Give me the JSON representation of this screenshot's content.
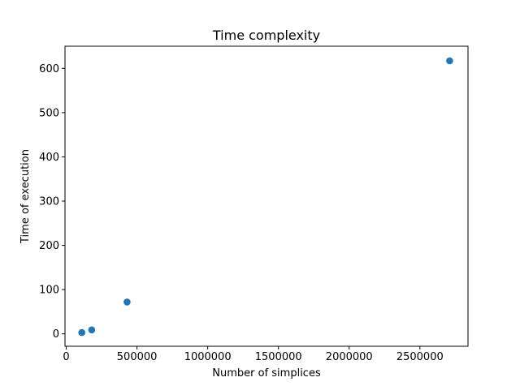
{
  "chart_data": {
    "type": "scatter",
    "title": "Time complexity",
    "xlabel": "Number of simplices",
    "ylabel": "Time of execution",
    "xlim": [
      -9000,
      2840000
    ],
    "ylim": [
      -28,
      650
    ],
    "xticks": [
      0,
      500000,
      1000000,
      1500000,
      2000000,
      2500000
    ],
    "xtick_labels": [
      "0",
      "500000",
      "1000000",
      "1500000",
      "2000000",
      "2500000"
    ],
    "yticks": [
      0,
      100,
      200,
      300,
      400,
      500,
      600
    ],
    "ytick_labels": [
      "0",
      "100",
      "200",
      "300",
      "400",
      "500",
      "600"
    ],
    "grid": false,
    "marker_color": "#1f77b4",
    "points": [
      {
        "x": 110000,
        "y": 3
      },
      {
        "x": 180000,
        "y": 9
      },
      {
        "x": 430000,
        "y": 72
      },
      {
        "x": 2710000,
        "y": 617
      }
    ]
  }
}
